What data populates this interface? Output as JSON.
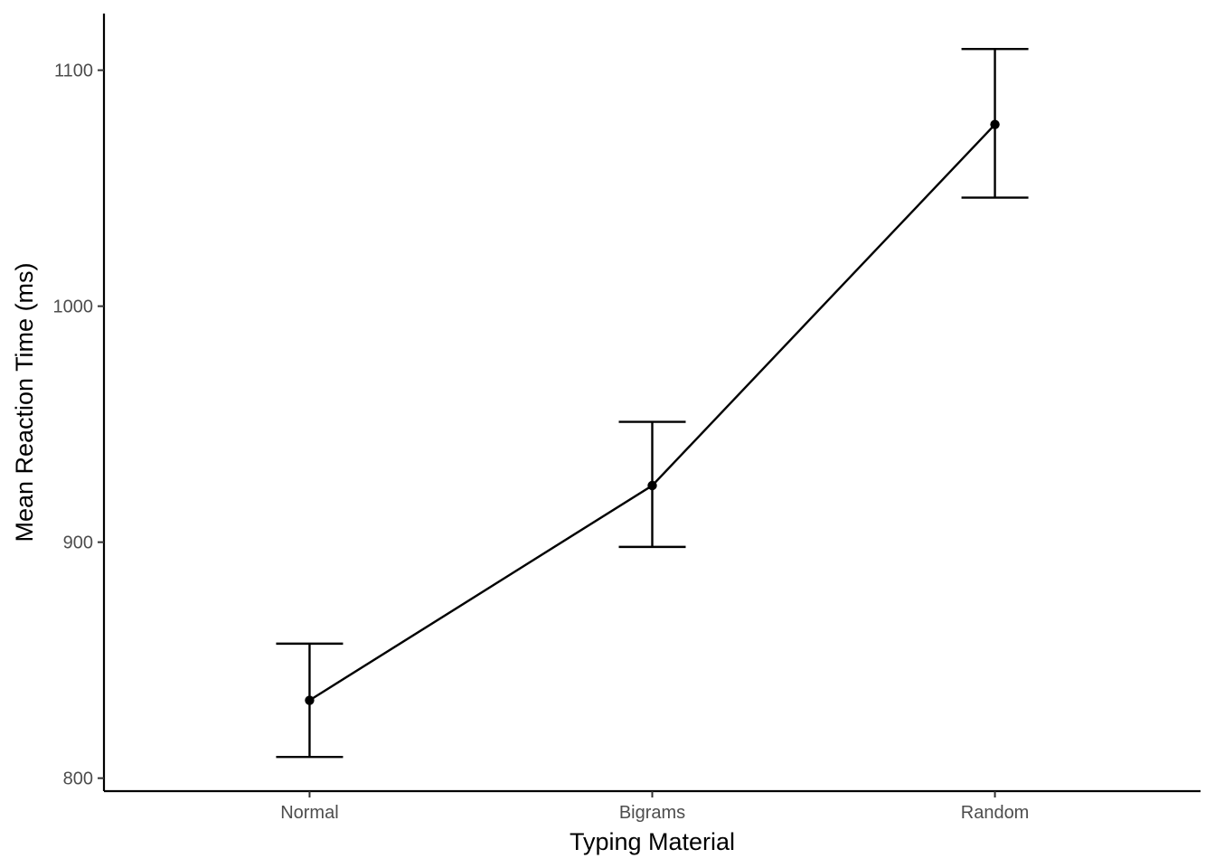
{
  "chart_data": {
    "type": "line",
    "categories": [
      "Normal",
      "Bigrams",
      "Random"
    ],
    "series": [
      {
        "values": [
          833,
          924,
          1077
        ],
        "error_low": [
          809,
          898,
          1046
        ],
        "error_high": [
          857,
          951,
          1109
        ]
      }
    ],
    "xlabel": "Typing Material",
    "ylabel": "Mean Reaction Time (ms)",
    "yticks": [
      800,
      900,
      1000,
      1100
    ],
    "ylim": [
      794.5,
      1124
    ],
    "grid": false,
    "colors": {
      "line": "#000000",
      "axis": "#000000",
      "tick_label": "#4d4d4d",
      "background": "#ffffff"
    }
  }
}
